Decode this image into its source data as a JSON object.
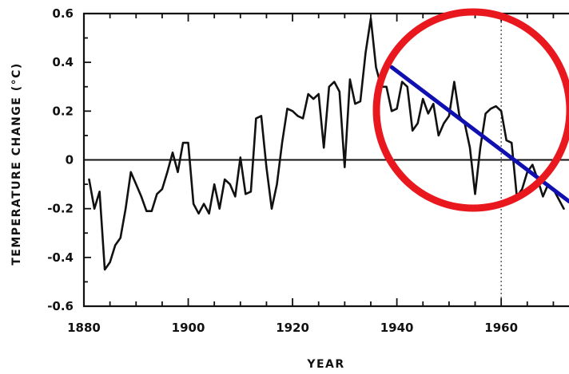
{
  "chart_data": {
    "type": "line",
    "xlabel": "YEAR",
    "ylabel": "TEMPERATURE CHANGE (°C)",
    "xlim": [
      1880,
      1973
    ],
    "ylim": [
      -0.6,
      0.6
    ],
    "x_ticks": [
      1880,
      1900,
      1920,
      1940,
      1960
    ],
    "y_ticks": [
      0.6,
      0.4,
      0.2,
      0,
      -0.2,
      -0.4,
      -0.6
    ],
    "y_tick_labels": [
      "0.6",
      "0.4",
      "0.2",
      "0",
      "-0.2",
      "-0.4",
      "-0.6"
    ],
    "grid": false,
    "series": [
      {
        "color": "#111111",
        "x": [
          1881,
          1882,
          1883,
          1884,
          1885,
          1886,
          1887,
          1888,
          1889,
          1890,
          1891,
          1892,
          1893,
          1894,
          1895,
          1896,
          1897,
          1898,
          1899,
          1900,
          1901,
          1902,
          1903,
          1904,
          1905,
          1906,
          1907,
          1908,
          1909,
          1910,
          1911,
          1912,
          1913,
          1914,
          1915,
          1916,
          1917,
          1918,
          1919,
          1920,
          1921,
          1922,
          1923,
          1924,
          1925,
          1926,
          1927,
          1928,
          1929,
          1930,
          1931,
          1932,
          1933,
          1934,
          1935,
          1936,
          1937,
          1938,
          1939,
          1940,
          1941,
          1942,
          1943,
          1944,
          1945,
          1946,
          1947,
          1948,
          1949,
          1950,
          1951,
          1952,
          1953,
          1954,
          1955,
          1956,
          1957,
          1958,
          1959,
          1960,
          1961,
          1962,
          1963,
          1964,
          1965,
          1966,
          1967,
          1968,
          1969,
          1970,
          1971,
          1972
        ],
        "y": [
          -0.08,
          -0.2,
          -0.13,
          -0.45,
          -0.42,
          -0.35,
          -0.32,
          -0.2,
          -0.05,
          -0.1,
          -0.15,
          -0.21,
          -0.21,
          -0.14,
          -0.12,
          -0.05,
          0.03,
          -0.05,
          0.07,
          0.07,
          -0.18,
          -0.22,
          -0.18,
          -0.22,
          -0.1,
          -0.2,
          -0.08,
          -0.1,
          -0.15,
          0.01,
          -0.14,
          -0.13,
          0.17,
          0.18,
          -0.03,
          -0.2,
          -0.1,
          0.07,
          0.21,
          0.2,
          0.18,
          0.17,
          0.27,
          0.25,
          0.27,
          0.05,
          0.3,
          0.32,
          0.28,
          -0.03,
          0.33,
          0.23,
          0.24,
          0.44,
          0.58,
          0.38,
          0.3,
          0.3,
          0.2,
          0.21,
          0.32,
          0.3,
          0.12,
          0.15,
          0.25,
          0.19,
          0.23,
          0.1,
          0.15,
          0.18,
          0.32,
          0.18,
          0.15,
          0.05,
          -0.14,
          0.05,
          0.19,
          0.21,
          0.22,
          0.2,
          0.08,
          0.07,
          -0.15,
          -0.12,
          -0.05,
          -0.02,
          -0.08,
          -0.15,
          -0.1,
          -0.12,
          -0.16,
          -0.2
        ]
      },
      {
        "color": "#1010b0",
        "x": [
          1939,
          1973
        ],
        "y": [
          0.38,
          -0.17
        ]
      }
    ],
    "zero_line": {
      "color": "#111111",
      "y": 0
    },
    "vertical_reference": {
      "x": 1960,
      "style": "dotted"
    },
    "annotation_circle": {
      "color": "#e8181e"
    }
  }
}
